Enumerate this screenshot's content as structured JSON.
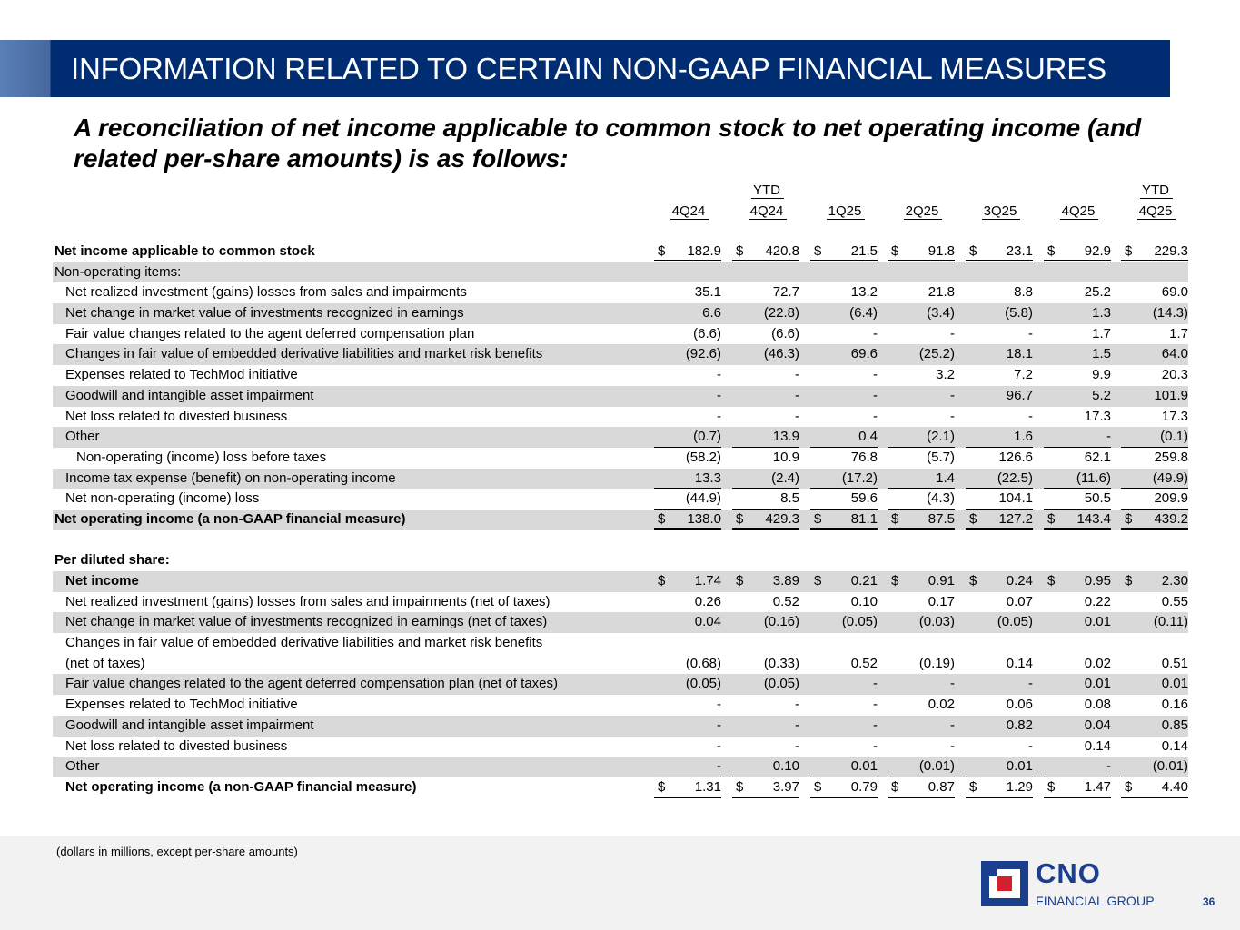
{
  "title": "INFORMATION RELATED TO CERTAIN NON-GAAP FINANCIAL MEASURES",
  "subtitle": "A reconciliation of net income applicable to common stock to net operating income (and related per-share amounts) is as follows:",
  "columns": [
    {
      "top": "",
      "bottom": "4Q24"
    },
    {
      "top": "YTD",
      "bottom": "4Q24"
    },
    {
      "top": "",
      "bottom": "1Q25"
    },
    {
      "top": "",
      "bottom": "2Q25"
    },
    {
      "top": "",
      "bottom": "3Q25"
    },
    {
      "top": "",
      "bottom": "4Q25"
    },
    {
      "top": "YTD",
      "bottom": "4Q25"
    }
  ],
  "rows": [
    {
      "label": "Net income applicable to common stock",
      "bold": true,
      "currency": true,
      "values": [
        "182.9",
        "420.8",
        "21.5",
        "91.8",
        "23.1",
        "92.9",
        "229.3"
      ]
    },
    {
      "label": "Non-operating items:",
      "values": [
        "",
        "",
        "",
        "",
        "",
        "",
        ""
      ]
    },
    {
      "label": "Net realized investment (gains) losses from sales and impairments",
      "values": [
        "35.1",
        "72.7",
        "13.2",
        "21.8",
        "8.8",
        "25.2",
        "69.0"
      ]
    },
    {
      "label": "Net change in market value of investments recognized in earnings",
      "values": [
        "6.6",
        "(22.8)",
        "(6.4)",
        "(3.4)",
        "(5.8)",
        "1.3",
        "(14.3)"
      ]
    },
    {
      "label": "Fair value changes related to the agent deferred compensation plan",
      "values": [
        "(6.6)",
        "(6.6)",
        "-",
        "-",
        "-",
        "1.7",
        "1.7"
      ]
    },
    {
      "label": "Changes in fair value of embedded derivative liabilities and market risk benefits",
      "values": [
        "(92.6)",
        "(46.3)",
        "69.6",
        "(25.2)",
        "18.1",
        "1.5",
        "64.0"
      ]
    },
    {
      "label": "Expenses related to TechMod initiative",
      "values": [
        "-",
        "-",
        "-",
        "3.2",
        "7.2",
        "9.9",
        "20.3"
      ]
    },
    {
      "label": "Goodwill and intangible asset impairment",
      "values": [
        "-",
        "-",
        "-",
        "-",
        "96.7",
        "5.2",
        "101.9"
      ]
    },
    {
      "label": "Net loss related to divested business",
      "values": [
        "-",
        "-",
        "-",
        "-",
        "-",
        "17.3",
        "17.3"
      ]
    },
    {
      "label": "Other",
      "values": [
        "(0.7)",
        "13.9",
        "0.4",
        "(2.1)",
        "1.6",
        "-",
        "(0.1)"
      ]
    },
    {
      "label": "Non-operating (income) loss before taxes",
      "values": [
        "(58.2)",
        "10.9",
        "76.8",
        "(5.7)",
        "126.6",
        "62.1",
        "259.8"
      ]
    },
    {
      "label": "Income tax expense (benefit) on non-operating income",
      "values": [
        "13.3",
        "(2.4)",
        "(17.2)",
        "1.4",
        "(22.5)",
        "(11.6)",
        "(49.9)"
      ]
    },
    {
      "label": "Net non-operating (income) loss",
      "values": [
        "(44.9)",
        "8.5",
        "59.6",
        "(4.3)",
        "104.1",
        "50.5",
        "209.9"
      ]
    },
    {
      "label": "Net operating income (a non-GAAP financial measure)",
      "bold": true,
      "currency": true,
      "values": [
        "138.0",
        "429.3",
        "81.1",
        "87.5",
        "127.2",
        "143.4",
        "439.2"
      ]
    },
    {
      "label": "Per diluted share:",
      "bold": true,
      "values": [
        "",
        "",
        "",
        "",
        "",
        "",
        ""
      ]
    },
    {
      "label": "Net income",
      "bold": true,
      "currency": true,
      "values": [
        "1.74",
        "3.89",
        "0.21",
        "0.91",
        "0.24",
        "0.95",
        "2.30"
      ]
    },
    {
      "label": "Net realized investment (gains) losses from sales and impairments (net of taxes)",
      "values": [
        "0.26",
        "0.52",
        "0.10",
        "0.17",
        "0.07",
        "0.22",
        "0.55"
      ]
    },
    {
      "label": "Net change in market value of investments recognized in earnings (net of taxes)",
      "values": [
        "0.04",
        "(0.16)",
        "(0.05)",
        "(0.03)",
        "(0.05)",
        "0.01",
        "(0.11)"
      ]
    },
    {
      "label": "Changes in fair value of embedded derivative liabilities and market risk benefits",
      "label2": "(net of taxes)",
      "values": [
        "(0.68)",
        "(0.33)",
        "0.52",
        "(0.19)",
        "0.14",
        "0.02",
        "0.51"
      ]
    },
    {
      "label": "Fair value changes related to the agent deferred compensation plan (net of taxes)",
      "values": [
        "(0.05)",
        "(0.05)",
        "-",
        "-",
        "-",
        "0.01",
        "0.01"
      ]
    },
    {
      "label": "Expenses related to TechMod initiative",
      "values": [
        "-",
        "-",
        "-",
        "0.02",
        "0.06",
        "0.08",
        "0.16"
      ]
    },
    {
      "label": "Goodwill and intangible asset impairment",
      "values": [
        "-",
        "-",
        "-",
        "-",
        "0.82",
        "0.04",
        "0.85"
      ]
    },
    {
      "label": "Net loss related to divested business",
      "values": [
        "-",
        "-",
        "-",
        "-",
        "-",
        "0.14",
        "0.14"
      ]
    },
    {
      "label": "Other",
      "values": [
        "-",
        "0.10",
        "0.01",
        "(0.01)",
        "0.01",
        "-",
        "(0.01)"
      ]
    },
    {
      "label": "Net operating income (a non-GAAP financial measure)",
      "bold": true,
      "currency": true,
      "values": [
        "1.31",
        "3.97",
        "0.79",
        "0.87",
        "1.29",
        "1.47",
        "4.40"
      ]
    }
  ],
  "currency_symbol": "$",
  "footnote": "(dollars in millions, except per-share amounts)",
  "logo": {
    "name": "CNO",
    "tagline": "FINANCIAL GROUP"
  },
  "page_number": "36",
  "colors": {
    "brand_navy": "#002d72",
    "logo_blue": "#1b3f8c",
    "logo_red": "#d2202f",
    "row_shade": "#d9d9d9"
  }
}
